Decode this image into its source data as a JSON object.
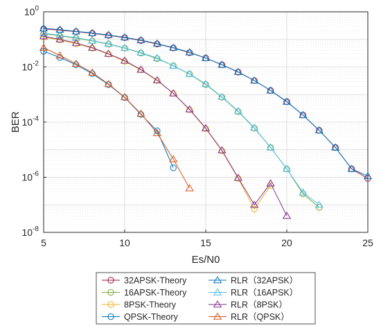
{
  "chart_data": {
    "type": "line",
    "title": "",
    "xlabel": "Es/N0",
    "ylabel": "BER",
    "xlim": [
      5,
      25
    ],
    "ylim_exp": [
      -8,
      0
    ],
    "y_scale": "log",
    "x_ticks": [
      "5",
      "10",
      "15",
      "20",
      "25"
    ],
    "y_ticks": [
      {
        "base": "10",
        "exp": "0"
      },
      {
        "base": "10",
        "exp": "-2"
      },
      {
        "base": "10",
        "exp": "-4"
      },
      {
        "base": "10",
        "exp": "-6"
      },
      {
        "base": "10",
        "exp": "-8"
      }
    ],
    "grid": true,
    "legend_position": "bottom",
    "series": [
      {
        "name": "32APSK-Theory",
        "color": "#A2142F",
        "marker": "circle",
        "x": [
          5,
          6,
          7,
          8,
          9,
          10,
          11,
          12,
          13,
          14,
          15,
          16,
          17,
          18,
          19,
          20,
          21,
          22,
          23,
          24,
          25
        ],
        "y": [
          0.24,
          0.215,
          0.19,
          0.165,
          0.14,
          0.115,
          0.091,
          0.068,
          0.049,
          0.033,
          0.021,
          0.012,
          0.0065,
          0.0032,
          0.0014,
          0.00055,
          0.00018,
          5e-05,
          1.2e-05,
          2e-06,
          9e-07
        ]
      },
      {
        "name": "16APSK-Theory",
        "color": "#77AC30",
        "marker": "circle",
        "x": [
          5,
          6,
          7,
          8,
          9,
          10,
          11,
          12,
          13,
          14,
          15,
          16,
          17,
          18,
          19,
          20,
          21,
          22
        ],
        "y": [
          0.16,
          0.135,
          0.11,
          0.088,
          0.067,
          0.048,
          0.032,
          0.02,
          0.011,
          0.0055,
          0.0023,
          0.0008,
          0.00024,
          6e-05,
          1.2e-05,
          2e-06,
          2.5e-07,
          8e-08
        ]
      },
      {
        "name": "8PSK-Theory",
        "color": "#EDB120",
        "marker": "circle",
        "x": [
          5,
          6,
          7,
          8,
          9,
          10,
          11,
          12,
          13,
          14,
          15,
          16,
          17,
          18,
          19
        ],
        "y": [
          0.12,
          0.095,
          0.07,
          0.048,
          0.029,
          0.016,
          0.0078,
          0.0032,
          0.0011,
          0.00028,
          5.8e-05,
          9e-06,
          9e-07,
          7e-08,
          5e-07
        ]
      },
      {
        "name": "QPSK-Theory",
        "color": "#0072BD",
        "marker": "circle",
        "x": [
          5,
          6,
          7,
          8,
          9,
          10,
          11,
          12,
          13
        ],
        "y": [
          0.037,
          0.022,
          0.012,
          0.0057,
          0.0023,
          0.00078,
          0.00019,
          4.8e-05,
          2.2e-06
        ]
      },
      {
        "name": "RLR（32APSK）",
        "color": "#0072BD",
        "marker": "triangle",
        "x": [
          5,
          6,
          7,
          8,
          9,
          10,
          11,
          12,
          13,
          14,
          15,
          16,
          17,
          18,
          19,
          20,
          21,
          22,
          23,
          24,
          25
        ],
        "y": [
          0.25,
          0.225,
          0.195,
          0.17,
          0.145,
          0.118,
          0.094,
          0.07,
          0.05,
          0.034,
          0.021,
          0.012,
          0.0066,
          0.0032,
          0.0014,
          0.00055,
          0.00018,
          5e-05,
          1.2e-05,
          2e-06,
          1.1e-06
        ]
      },
      {
        "name": "RLR（16APSK）",
        "color": "#4DBEEE",
        "marker": "triangle",
        "x": [
          5,
          6,
          7,
          8,
          9,
          10,
          11,
          12,
          13,
          14,
          15,
          16,
          17,
          18,
          19,
          20,
          21,
          22
        ],
        "y": [
          0.17,
          0.14,
          0.115,
          0.09,
          0.069,
          0.049,
          0.033,
          0.021,
          0.011,
          0.0056,
          0.0024,
          0.00082,
          0.00025,
          6.2e-05,
          1.2e-05,
          2e-06,
          2.8e-07,
          1e-07
        ]
      },
      {
        "name": "RLR（8PSK）",
        "color": "#7E2F8E",
        "marker": "triangle",
        "x": [
          5,
          6,
          7,
          8,
          9,
          10,
          11,
          12,
          13,
          14,
          15,
          16,
          17,
          18,
          19,
          20
        ],
        "y": [
          0.13,
          0.1,
          0.074,
          0.05,
          0.03,
          0.017,
          0.008,
          0.0033,
          0.0011,
          0.00029,
          6e-05,
          9.5e-06,
          9.5e-07,
          1e-07,
          6e-07,
          4e-08
        ]
      },
      {
        "name": "RLR（QPSK）",
        "color": "#D95319",
        "marker": "triangle",
        "x": [
          5,
          6,
          7,
          8,
          9,
          10,
          11,
          12,
          13,
          14
        ],
        "y": [
          0.05,
          0.026,
          0.013,
          0.0062,
          0.0024,
          0.0008,
          0.0002,
          4e-05,
          4.5e-06,
          4e-07
        ]
      }
    ]
  }
}
